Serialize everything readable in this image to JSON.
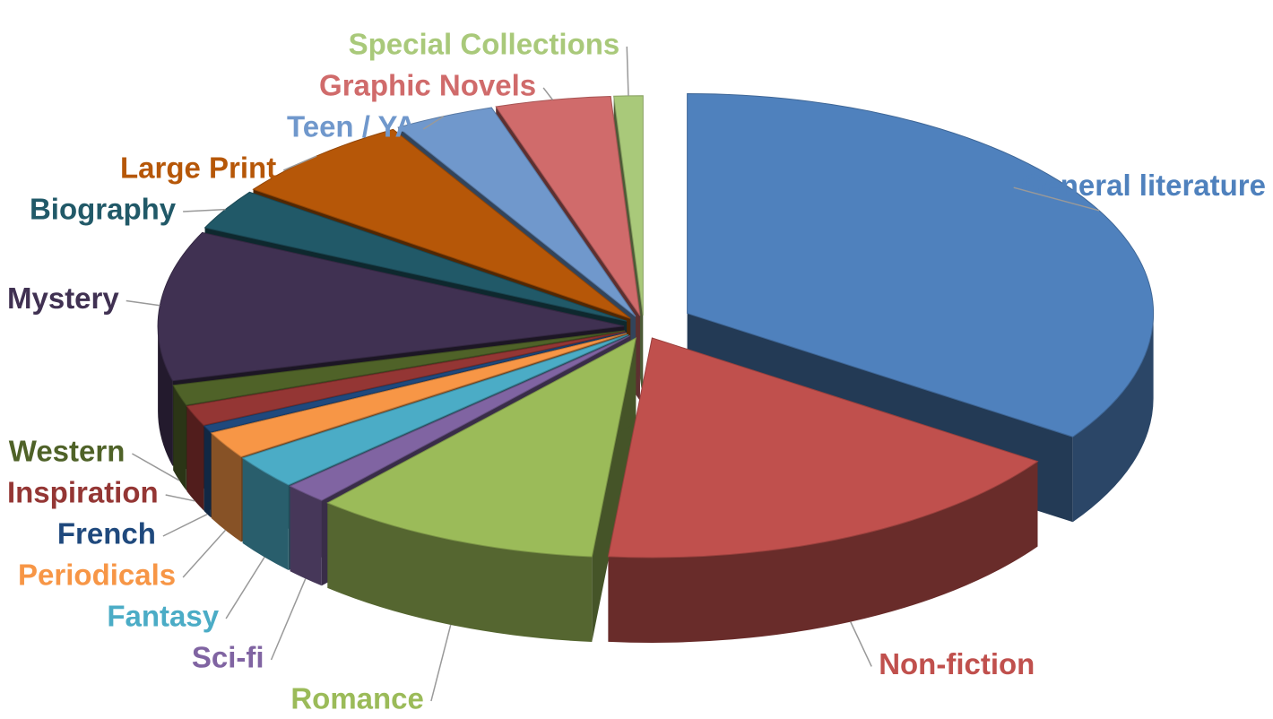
{
  "chart_data": {
    "type": "pie3d",
    "categories": [
      "General literature",
      "Non-fiction",
      "Romance",
      "Sci-fi",
      "Fantasy",
      "Periodicals",
      "French",
      "Inspiration",
      "Western",
      "Mystery",
      "Biography",
      "Large Print",
      "Teen / YA",
      "Graphic Novels",
      "Special Collections"
    ],
    "values": [
      34.5,
      17,
      10,
      1.5,
      2.5,
      2,
      0.5,
      1.5,
      1.5,
      11,
      3,
      6.5,
      3.5,
      4,
      1
    ],
    "colors": [
      "#4f81bd",
      "#c0504d",
      "#9bbb59",
      "#8064a2",
      "#4bacc6",
      "#f79646",
      "#1f497d",
      "#943634",
      "#4f6228",
      "#403152",
      "#215968",
      "#b65708",
      "#7098cc",
      "#d06b6b",
      "#a9c97a"
    ]
  }
}
